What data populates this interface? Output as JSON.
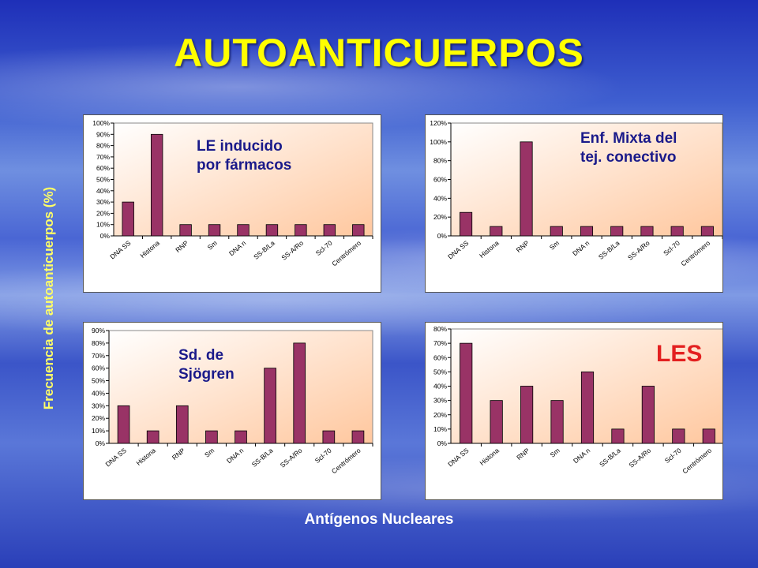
{
  "slide": {
    "title": "AUTOANTICUERPOS",
    "ylabel": "Frecuencia de autoanticuerpos (%)",
    "xlabel": "Antígenos Nucleares"
  },
  "colors": {
    "bar": "#993366",
    "plot_bg_light": "#ffffff",
    "plot_bg_dark": "#ffc79e",
    "title": "#ffff00"
  },
  "chart_data": [
    {
      "type": "bar",
      "title": "LE inducido\npor fármacos",
      "categories": [
        "DNA SS",
        "Histona",
        "RNP",
        "Sm",
        "DNA n",
        "SS-B/La",
        "SS-A/Ro",
        "Scl-70",
        "Centrómero"
      ],
      "values": [
        30,
        90,
        10,
        10,
        10,
        10,
        10,
        10,
        10
      ],
      "ylim": [
        0,
        100
      ],
      "yticks": [
        "0%",
        "10%",
        "20%",
        "30%",
        "40%",
        "50%",
        "60%",
        "70%",
        "80%",
        "90%",
        "100%"
      ],
      "grid": false
    },
    {
      "type": "bar",
      "title": "Enf. Mixta del\ntej. conectivo",
      "categories": [
        "DNA SS",
        "Histona",
        "RNP",
        "Sm",
        "DNA n",
        "SS-B/La",
        "SS-A/Ro",
        "Scl-70",
        "Centrómero"
      ],
      "values": [
        25,
        10,
        100,
        10,
        10,
        10,
        10,
        10,
        10
      ],
      "ylim": [
        0,
        120
      ],
      "yticks": [
        "0%",
        "20%",
        "40%",
        "60%",
        "80%",
        "100%",
        "120%"
      ],
      "grid": false
    },
    {
      "type": "bar",
      "title": "Sd. de\nSjögren",
      "categories": [
        "DNA SS",
        "Histona",
        "RNP",
        "Sm",
        "DNA n",
        "SS-B/La",
        "SS-A/Ro",
        "Scl-70",
        "Centrómero"
      ],
      "values": [
        30,
        10,
        30,
        10,
        10,
        60,
        80,
        10,
        10
      ],
      "ylim": [
        0,
        90
      ],
      "yticks": [
        "0%",
        "10%",
        "20%",
        "30%",
        "40%",
        "50%",
        "60%",
        "70%",
        "80%",
        "90%"
      ],
      "grid": false
    },
    {
      "type": "bar",
      "title": "LES",
      "categories": [
        "DNA SS",
        "Histona",
        "RNP",
        "Sm",
        "DNA n",
        "SS-B/La",
        "SS-A/Ro",
        "Scl-70",
        "Centrómero"
      ],
      "values": [
        70,
        30,
        40,
        30,
        50,
        10,
        40,
        10,
        10
      ],
      "ylim": [
        0,
        80
      ],
      "yticks": [
        "0%",
        "10%",
        "20%",
        "30%",
        "40%",
        "50%",
        "60%",
        "70%",
        "80%"
      ],
      "grid": false
    }
  ]
}
